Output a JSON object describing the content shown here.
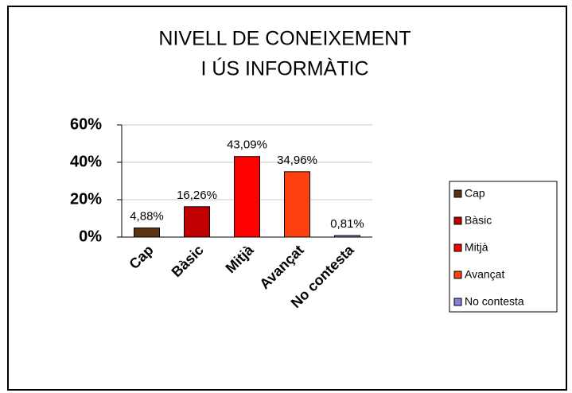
{
  "chart_data": {
    "type": "bar",
    "title": [
      "NIVELL DE CONEIXEMENT",
      "I ÚS INFORMÀTIC"
    ],
    "categories": [
      "Cap",
      "Bàsic",
      "Mitjà",
      "Avançat",
      "No contesta"
    ],
    "values": [
      4.88,
      16.26,
      43.09,
      34.96,
      0.81
    ],
    "value_labels": [
      "4,88%",
      "16,26%",
      "43,09%",
      "34,96%",
      "0,81%"
    ],
    "colors": [
      "#5c3310",
      "#c00000",
      "#ff0000",
      "#ff4010",
      "#8080e0"
    ],
    "ylim": [
      0,
      60
    ],
    "yticks": [
      {
        "value": 0,
        "label": "0%"
      },
      {
        "value": 20,
        "label": "20%"
      },
      {
        "value": 40,
        "label": "40%"
      },
      {
        "value": 60,
        "label": "60%"
      }
    ],
    "grid": true,
    "legend": "right"
  }
}
